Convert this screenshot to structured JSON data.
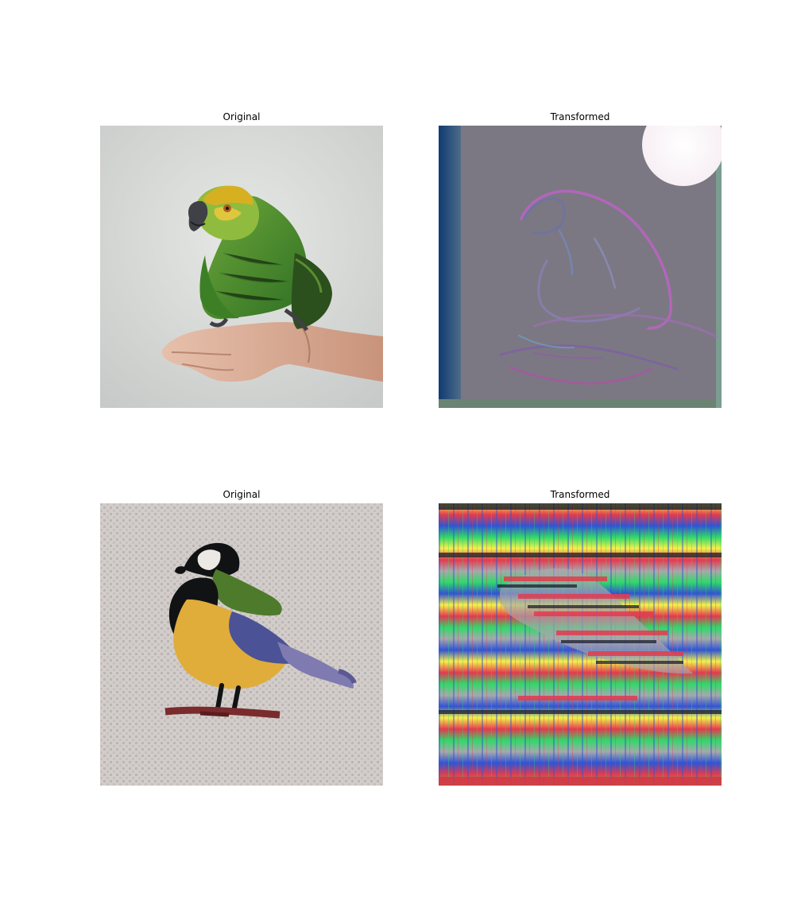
{
  "figure": {
    "panels": [
      {
        "title": "Original",
        "subject": "green parrot perched on an outstretched hand",
        "palette": [
          "#dfe1de",
          "#4c8c2e",
          "#d7b021",
          "#3f4146",
          "#d8ad97"
        ]
      },
      {
        "title": "Transformed",
        "subject": "style-transferred parrot outline on grey-purple background",
        "palette": [
          "#7b7883",
          "#0f3b72",
          "#fbf4f5",
          "#b26fc4",
          "#6aa78a"
        ]
      },
      {
        "title": "Original",
        "subject": "cross-stitched great tit bird on beige canvas",
        "palette": [
          "#cbc7c2",
          "#111214",
          "#e0ac3a",
          "#4e7a2c",
          "#4b5296",
          "#7a2b2d"
        ]
      },
      {
        "title": "Transformed",
        "subject": "highly distorted striped rainbow bird pattern",
        "palette": [
          "#e33b4e",
          "#31d86a",
          "#f5f14a",
          "#3054d3",
          "#a8a8ad",
          "#1b1f2f"
        ]
      }
    ]
  }
}
